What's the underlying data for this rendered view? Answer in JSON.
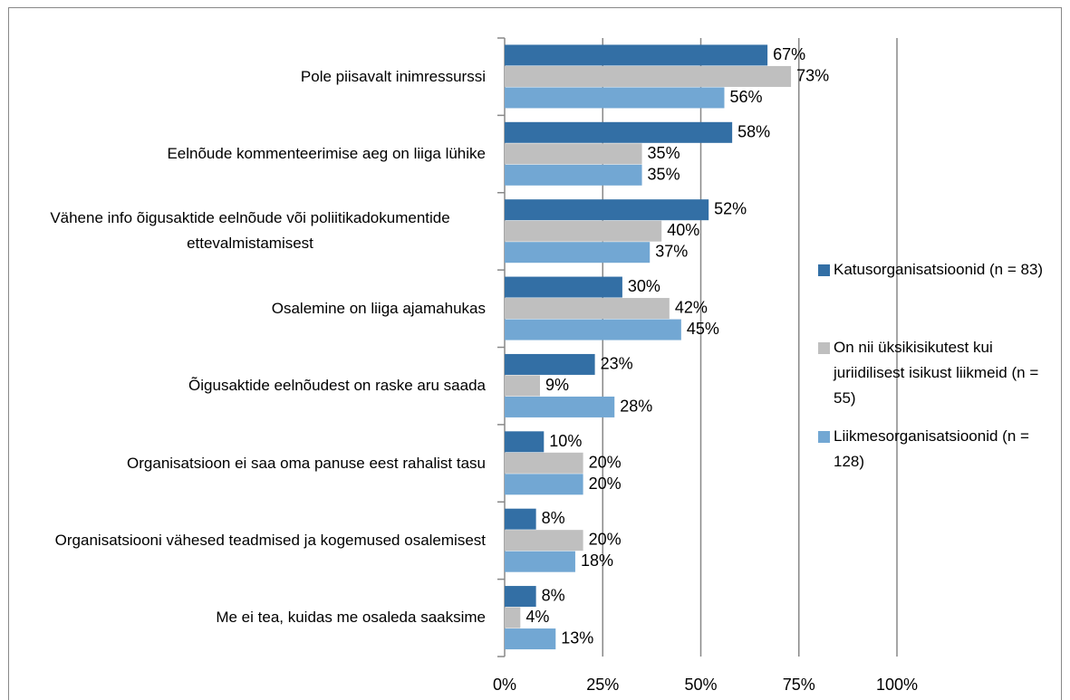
{
  "chart_data": {
    "type": "bar",
    "orientation": "horizontal",
    "categories": [
      "Pole piisavalt inimressurssi",
      "Eelnõude kommenteerimise aeg on liiga lühike",
      "Vähene info õigusaktide eelnõude või poliitikadokumentide ettevalmistamisest",
      "Osalemine on liiga ajamahukas",
      "Õigusaktide eelnõudest on raske aru saada",
      "Organisatsioon ei saa oma panuse eest rahalist tasu",
      "Organisatsiooni vähesed teadmised ja kogemused osalemisest",
      "Me ei tea, kuidas me osaleda saaksime"
    ],
    "series": [
      {
        "name": "Katusorganisatsioonid (n = 83)",
        "color": "#336fa5",
        "values": [
          67,
          58,
          52,
          30,
          23,
          10,
          8,
          8
        ],
        "value_labels": [
          "67%",
          "58%",
          "52%",
          "30%",
          "23%",
          "10%",
          "8%",
          "8%"
        ]
      },
      {
        "name": "On nii üksikisikutest kui juriidilisest isikust liikmeid (n = 55)",
        "color": "#bfbfbf",
        "values": [
          73,
          35,
          40,
          42,
          9,
          20,
          20,
          4
        ],
        "value_labels": [
          "73%",
          "35%",
          "40%",
          "42%",
          "9%",
          "20%",
          "20%",
          "4%"
        ]
      },
      {
        "name": "Liikmesorganisatsioonid (n = 128)",
        "color": "#72a7d3",
        "values": [
          56,
          35,
          37,
          45,
          28,
          20,
          18,
          13
        ],
        "value_labels": [
          "56%",
          "35%",
          "37%",
          "45%",
          "28%",
          "20%",
          "18%",
          "13%"
        ]
      }
    ],
    "xlim": [
      0,
      100
    ],
    "xticks": [
      {
        "value": 0,
        "label": "0%"
      },
      {
        "value": 25,
        "label": "25%"
      },
      {
        "value": 50,
        "label": "50%"
      },
      {
        "value": 75,
        "label": "75%"
      },
      {
        "value": 100,
        "label": "100%"
      }
    ],
    "grid": true,
    "legend": "right"
  }
}
